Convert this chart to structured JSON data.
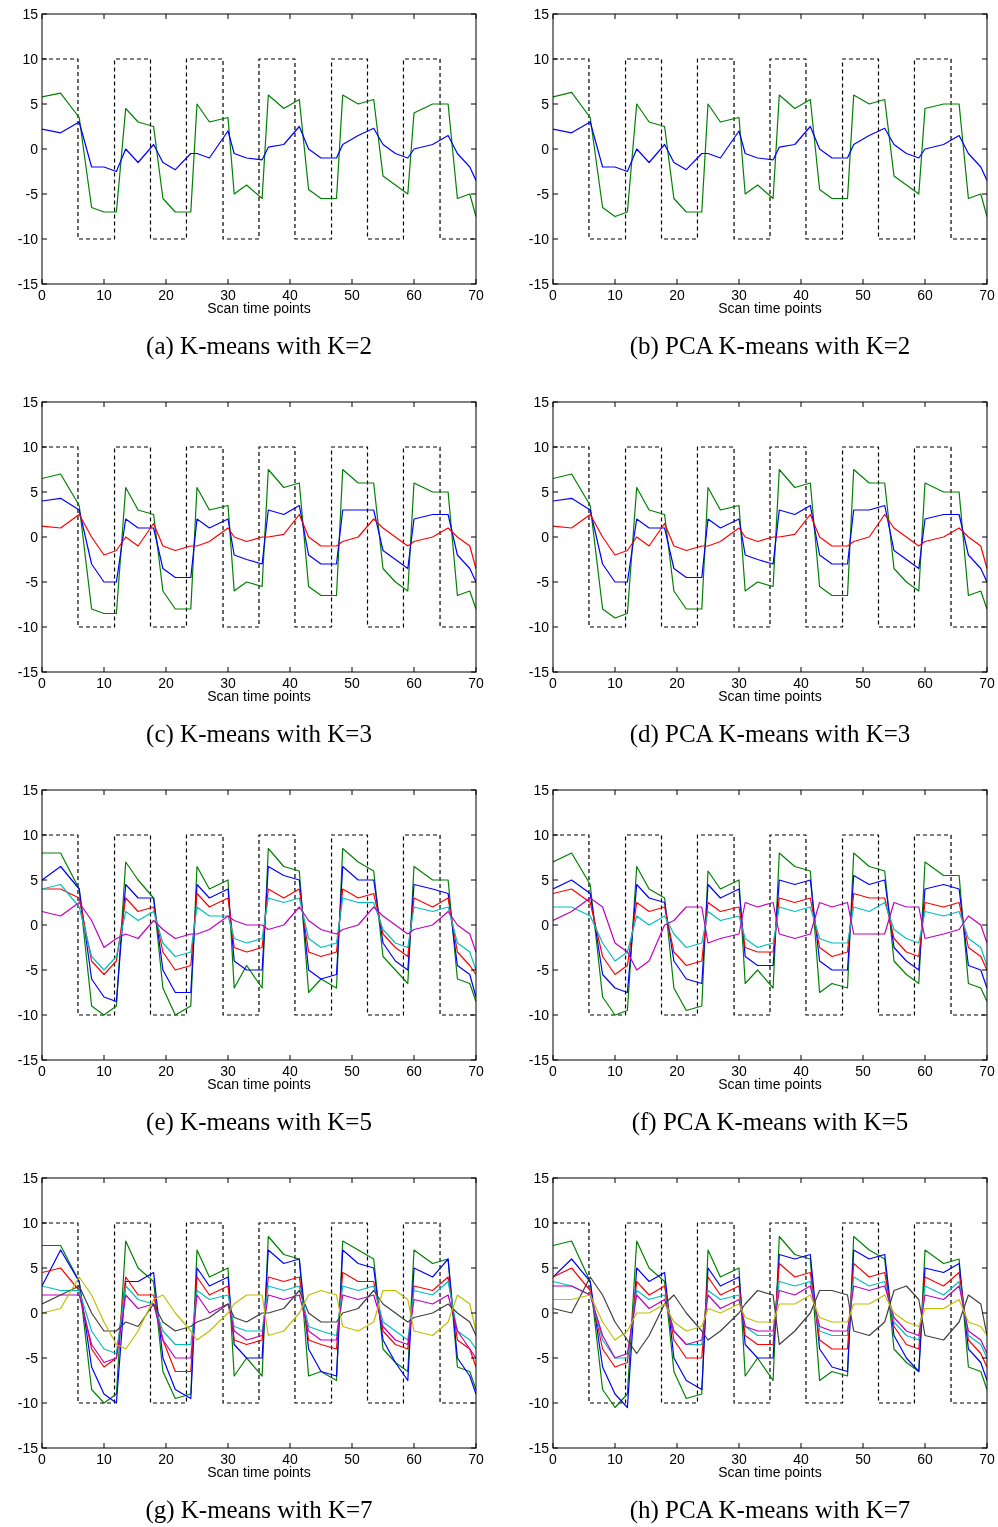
{
  "chart_data": [
    {
      "type": "line",
      "title": "(a) K-means with K=2",
      "xlabel": "Scan time points",
      "xlim": [
        0,
        70
      ],
      "xticks": [
        0,
        10,
        20,
        30,
        40,
        50,
        60,
        70
      ],
      "ylim": [
        -15,
        15
      ],
      "yticks": [
        -15,
        -10,
        -5,
        0,
        5,
        10,
        15
      ],
      "x": [
        0,
        3,
        6,
        8,
        10,
        12,
        13.5,
        15.5,
        18,
        19.5,
        21.5,
        24,
        25,
        27,
        30,
        31,
        33,
        35.5,
        36.5,
        39,
        41.5,
        43,
        45,
        47.5,
        48.5,
        51,
        53.5,
        55,
        57,
        59,
        60,
        63,
        65.5,
        67,
        69,
        70
      ],
      "series": [
        {
          "type": "line",
          "line_style": "dashed",
          "color": "#000000",
          "x": [
            0,
            5.8,
            5.8,
            11.7,
            11.7,
            17.5,
            17.5,
            23.3,
            23.3,
            29.2,
            29.2,
            35,
            35,
            40.8,
            40.8,
            46.7,
            46.7,
            52.5,
            52.5,
            58.3,
            58.3,
            64.2,
            64.2,
            70
          ],
          "values": [
            10,
            10,
            -10,
            -10,
            10,
            10,
            -10,
            -10,
            10,
            10,
            -10,
            -10,
            10,
            10,
            -10,
            -10,
            10,
            10,
            -10,
            -10,
            10,
            10,
            -10,
            -10
          ]
        },
        {
          "color": "#008000",
          "values": [
            5.8,
            6.2,
            3.5,
            -6.5,
            -7,
            -7,
            4.5,
            3,
            2.5,
            -5.5,
            -7,
            -7,
            5,
            3,
            3.5,
            -5,
            -4,
            -5.5,
            6,
            4.5,
            5.5,
            -4.5,
            -5.5,
            -5.5,
            6,
            5,
            5.5,
            -3,
            -4,
            -5,
            4,
            5,
            5,
            -5.5,
            -5,
            -7.5
          ]
        },
        {
          "color": "#0000ff",
          "values": [
            2.2,
            1.8,
            3,
            -2,
            -2,
            -2.5,
            0,
            -1.5,
            0.5,
            -1.5,
            -2.3,
            -0.5,
            -0.5,
            -1,
            2,
            -0.5,
            -1,
            -1.2,
            0.2,
            0.5,
            2.5,
            0,
            -1,
            -1,
            0.5,
            1.5,
            2.3,
            0.5,
            -0.5,
            -1,
            0,
            0.5,
            1.5,
            -0.5,
            -2,
            -3.5
          ]
        }
      ]
    },
    {
      "type": "line",
      "title": "(b) PCA K-means with K=2",
      "xlabel": "Scan time points",
      "xlim": [
        0,
        70
      ],
      "xticks": [
        0,
        10,
        20,
        30,
        40,
        50,
        60,
        70
      ],
      "ylim": [
        -15,
        15
      ],
      "yticks": [
        -15,
        -10,
        -5,
        0,
        5,
        10,
        15
      ],
      "x": [
        0,
        3,
        6,
        8,
        10,
        12,
        13.5,
        15.5,
        18,
        19.5,
        21.5,
        24,
        25,
        27,
        30,
        31,
        33,
        35.5,
        36.5,
        39,
        41.5,
        43,
        45,
        47.5,
        48.5,
        51,
        53.5,
        55,
        57,
        59,
        60,
        63,
        65.5,
        67,
        69,
        70
      ],
      "series": [
        {
          "type": "line",
          "line_style": "dashed",
          "color": "#000000",
          "x": [
            0,
            5.8,
            5.8,
            11.7,
            11.7,
            17.5,
            17.5,
            23.3,
            23.3,
            29.2,
            29.2,
            35,
            35,
            40.8,
            40.8,
            46.7,
            46.7,
            52.5,
            52.5,
            58.3,
            58.3,
            64.2,
            64.2,
            70
          ],
          "values": [
            10,
            10,
            -10,
            -10,
            10,
            10,
            -10,
            -10,
            10,
            10,
            -10,
            -10,
            10,
            10,
            -10,
            -10,
            10,
            10,
            -10,
            -10,
            10,
            10,
            -10,
            -10
          ]
        },
        {
          "color": "#008000",
          "values": [
            5.8,
            6.3,
            3.5,
            -6.5,
            -7.5,
            -7,
            5,
            3,
            2.5,
            -5.5,
            -7,
            -7,
            5,
            3,
            3.5,
            -5,
            -4,
            -5.5,
            6,
            4.5,
            5.5,
            -4.5,
            -5.5,
            -5.5,
            6,
            5,
            5.5,
            -3,
            -4,
            -5,
            4.5,
            5,
            5,
            -5.5,
            -5,
            -7.5
          ]
        },
        {
          "color": "#0000ff",
          "values": [
            2.2,
            1.8,
            3,
            -2,
            -2,
            -2.5,
            0,
            -1.5,
            0.5,
            -1.5,
            -2.3,
            -0.5,
            -0.5,
            -1,
            2,
            -0.5,
            -1,
            -1.2,
            0.2,
            0.5,
            2.5,
            0,
            -1,
            -1,
            0.5,
            1.5,
            2.3,
            0.5,
            -0.5,
            -1,
            0,
            0.5,
            1.5,
            -0.5,
            -2,
            -3.5
          ]
        }
      ]
    },
    {
      "type": "line",
      "title": "(c) K-means with K=3",
      "xlabel": "Scan time points",
      "xlim": [
        0,
        70
      ],
      "xticks": [
        0,
        10,
        20,
        30,
        40,
        50,
        60,
        70
      ],
      "ylim": [
        -15,
        15
      ],
      "yticks": [
        -15,
        -10,
        -5,
        0,
        5,
        10,
        15
      ],
      "x": [
        0,
        3,
        6,
        8,
        10,
        12,
        13.5,
        15.5,
        18,
        19.5,
        21.5,
        24,
        25,
        27,
        30,
        31,
        33,
        35.5,
        36.5,
        39,
        41.5,
        43,
        45,
        47.5,
        48.5,
        51,
        53.5,
        55,
        57,
        59,
        60,
        63,
        65.5,
        67,
        69,
        70
      ],
      "series": [
        {
          "type": "line",
          "line_style": "dashed",
          "color": "#000000",
          "x": [
            0,
            5.8,
            5.8,
            11.7,
            11.7,
            17.5,
            17.5,
            23.3,
            23.3,
            29.2,
            29.2,
            35,
            35,
            40.8,
            40.8,
            46.7,
            46.7,
            52.5,
            52.5,
            58.3,
            58.3,
            64.2,
            64.2,
            70
          ],
          "values": [
            10,
            10,
            -10,
            -10,
            10,
            10,
            -10,
            -10,
            10,
            10,
            -10,
            -10,
            10,
            10,
            -10,
            -10,
            10,
            10,
            -10,
            -10,
            10,
            10,
            -10,
            -10
          ]
        },
        {
          "color": "#008000",
          "values": [
            6.5,
            7,
            3.5,
            -8,
            -8.5,
            -8.5,
            5.5,
            3,
            2.5,
            -6,
            -8,
            -8,
            5.5,
            3,
            3.5,
            -6,
            -5,
            -5.5,
            7.5,
            5.5,
            6,
            -5.5,
            -6.5,
            -6.5,
            7.5,
            6,
            6,
            -3.5,
            -5,
            -6,
            6,
            5,
            5,
            -6.5,
            -6,
            -8
          ]
        },
        {
          "color": "#0000ff",
          "values": [
            4,
            4.3,
            3,
            -3,
            -5,
            -5,
            2,
            1,
            1,
            -3.5,
            -4.5,
            -4.5,
            2,
            1,
            2,
            -2,
            -2.5,
            -3,
            3,
            2.5,
            3.5,
            -2,
            -3,
            -3,
            3,
            3,
            3,
            -1.5,
            -2.5,
            -3.5,
            2,
            2.5,
            2.5,
            -2,
            -3.5,
            -5
          ]
        },
        {
          "color": "#ff0000",
          "values": [
            1.2,
            1,
            2.5,
            0,
            -2,
            -1.5,
            0,
            -1,
            1.5,
            -1,
            -1.5,
            -1,
            -1,
            -0.5,
            1,
            0,
            -0.5,
            0,
            0,
            0.3,
            2.5,
            0,
            -1,
            -1,
            -0.5,
            0,
            2,
            1,
            0,
            -1,
            -0.5,
            0,
            1,
            0,
            -1,
            -3.5
          ]
        }
      ]
    },
    {
      "type": "line",
      "title": "(d) PCA K-means with K=3",
      "xlabel": "Scan time points",
      "xlim": [
        0,
        70
      ],
      "xticks": [
        0,
        10,
        20,
        30,
        40,
        50,
        60,
        70
      ],
      "ylim": [
        -15,
        15
      ],
      "yticks": [
        -15,
        -10,
        -5,
        0,
        5,
        10,
        15
      ],
      "x": [
        0,
        3,
        6,
        8,
        10,
        12,
        13.5,
        15.5,
        18,
        19.5,
        21.5,
        24,
        25,
        27,
        30,
        31,
        33,
        35.5,
        36.5,
        39,
        41.5,
        43,
        45,
        47.5,
        48.5,
        51,
        53.5,
        55,
        57,
        59,
        60,
        63,
        65.5,
        67,
        69,
        70
      ],
      "series": [
        {
          "type": "line",
          "line_style": "dashed",
          "color": "#000000",
          "x": [
            0,
            5.8,
            5.8,
            11.7,
            11.7,
            17.5,
            17.5,
            23.3,
            23.3,
            29.2,
            29.2,
            35,
            35,
            40.8,
            40.8,
            46.7,
            46.7,
            52.5,
            52.5,
            58.3,
            58.3,
            64.2,
            64.2,
            70
          ],
          "values": [
            10,
            10,
            -10,
            -10,
            10,
            10,
            -10,
            -10,
            10,
            10,
            -10,
            -10,
            10,
            10,
            -10,
            -10,
            10,
            10,
            -10,
            -10,
            10,
            10,
            -10,
            -10
          ]
        },
        {
          "color": "#008000",
          "values": [
            6.5,
            7,
            3.5,
            -8,
            -9,
            -8.5,
            5.5,
            3,
            2.5,
            -6,
            -8,
            -8,
            5.5,
            3,
            3.5,
            -6,
            -5,
            -5.5,
            7.5,
            5.5,
            6,
            -5.5,
            -6.5,
            -6.5,
            7.5,
            6,
            6,
            -3.5,
            -5,
            -6,
            6,
            5,
            5,
            -6.5,
            -6,
            -8
          ]
        },
        {
          "color": "#0000ff",
          "values": [
            4,
            4.3,
            3,
            -3,
            -5,
            -5,
            2,
            1,
            1,
            -3.5,
            -4.5,
            -4.5,
            2,
            1,
            2,
            -2,
            -2.5,
            -3,
            3,
            2.5,
            3.5,
            -2,
            -3,
            -3,
            3,
            3,
            3.5,
            -1.5,
            -2.5,
            -3.5,
            2,
            2.5,
            2.5,
            -2,
            -3.5,
            -5
          ]
        },
        {
          "color": "#ff0000",
          "values": [
            1.2,
            1,
            2.5,
            0,
            -2,
            -1.5,
            0,
            -1,
            1.5,
            -1,
            -1.5,
            -1,
            -1,
            -0.5,
            1,
            0,
            -0.5,
            0,
            0,
            0.3,
            2.5,
            0,
            -1,
            -1,
            -0.5,
            0,
            2.5,
            1,
            0,
            -1,
            -0.5,
            0,
            1,
            0,
            -1,
            -3.5
          ]
        }
      ]
    },
    {
      "type": "line",
      "title": "(e) K-means with K=5",
      "xlabel": "Scan time points",
      "xlim": [
        0,
        70
      ],
      "xticks": [
        0,
        10,
        20,
        30,
        40,
        50,
        60,
        70
      ],
      "ylim": [
        -15,
        15
      ],
      "yticks": [
        -15,
        -10,
        -5,
        0,
        5,
        10,
        15
      ],
      "x": [
        0,
        3,
        6,
        8,
        10,
        12,
        13.5,
        15.5,
        18,
        19.5,
        21.5,
        24,
        25,
        27,
        30,
        31,
        33,
        35.5,
        36.5,
        39,
        41.5,
        43,
        45,
        47.5,
        48.5,
        51,
        53.5,
        55,
        57,
        59,
        60,
        63,
        65.5,
        67,
        69,
        70
      ],
      "series": [
        {
          "type": "line",
          "line_style": "dashed",
          "color": "#000000",
          "x": [
            0,
            5.8,
            5.8,
            11.7,
            11.7,
            17.5,
            17.5,
            23.3,
            23.3,
            29.2,
            29.2,
            35,
            35,
            40.8,
            40.8,
            46.7,
            46.7,
            52.5,
            52.5,
            58.3,
            58.3,
            64.2,
            64.2,
            70
          ],
          "values": [
            10,
            10,
            -10,
            -10,
            10,
            10,
            -10,
            -10,
            10,
            10,
            -10,
            -10,
            10,
            10,
            -10,
            -10,
            10,
            10,
            -10,
            -10,
            10,
            10,
            -10,
            -10
          ]
        },
        {
          "color": "#008000",
          "values": [
            8,
            8,
            4,
            -9,
            -10,
            -9,
            7,
            5,
            3,
            -7,
            -10,
            -9,
            6.5,
            4,
            5,
            -7,
            -4.5,
            -7,
            8.5,
            6.5,
            6,
            -7.5,
            -6,
            -7,
            8.5,
            7,
            6,
            -3.5,
            -5,
            -6.5,
            6.5,
            5,
            5,
            -6,
            -6.5,
            -8.5
          ]
        },
        {
          "color": "#0000ff",
          "values": [
            5,
            6.5,
            4,
            -6,
            -8,
            -8.5,
            4.5,
            3,
            3,
            -5,
            -7.5,
            -7.5,
            4.5,
            3,
            4,
            -4,
            -5,
            -5,
            6.5,
            5.5,
            5,
            -5,
            -6,
            -5.5,
            6.5,
            5,
            5,
            -2,
            -4,
            -5,
            4.5,
            4,
            3.5,
            -4.5,
            -5.5,
            -8
          ]
        },
        {
          "color": "#ff0000",
          "values": [
            4,
            4,
            3,
            -4,
            -5.5,
            -4,
            3,
            1.5,
            2,
            -3,
            -5,
            -4.5,
            3.5,
            2,
            3,
            -2.5,
            -3,
            -2.5,
            4,
            3,
            4,
            -3,
            -3.5,
            -3,
            4,
            3,
            3.5,
            -1,
            -2.5,
            -3.5,
            3,
            2,
            3,
            -3,
            -4.5,
            -5.5
          ]
        },
        {
          "color": "#00bfbf",
          "values": [
            4,
            4.5,
            2,
            -3.5,
            -5,
            -3.5,
            1.5,
            0.5,
            1.5,
            -2,
            -3.5,
            -3,
            2,
            1,
            1,
            -1.5,
            -2,
            -1.5,
            3,
            2.5,
            3,
            -1.5,
            -2.5,
            -2,
            3,
            2.5,
            2.5,
            -0.5,
            -2,
            -2.5,
            2,
            1.5,
            2,
            -2,
            -3,
            -5
          ]
        },
        {
          "color": "#bf00bf",
          "values": [
            1.5,
            1,
            2.5,
            0.5,
            -2.5,
            -1.5,
            -1,
            -1.5,
            0.5,
            -0.5,
            -1.5,
            -1,
            -1,
            -0.5,
            1,
            0.5,
            0,
            0,
            -0.5,
            0,
            2,
            0.5,
            -0.5,
            -1,
            -0.5,
            0,
            2,
            1,
            0,
            -1,
            -0.5,
            0,
            1.5,
            0,
            -1,
            -3
          ]
        }
      ]
    },
    {
      "type": "line",
      "title": "(f) PCA K-means with K=5",
      "xlabel": "Scan time points",
      "xlim": [
        0,
        70
      ],
      "xticks": [
        0,
        10,
        20,
        30,
        40,
        50,
        60,
        70
      ],
      "ylim": [
        -15,
        15
      ],
      "yticks": [
        -15,
        -10,
        -5,
        0,
        5,
        10,
        15
      ],
      "x": [
        0,
        3,
        6,
        8,
        10,
        12,
        13.5,
        15.5,
        18,
        19.5,
        21.5,
        24,
        25,
        27,
        30,
        31,
        33,
        35.5,
        36.5,
        39,
        41.5,
        43,
        45,
        47.5,
        48.5,
        51,
        53.5,
        55,
        57,
        59,
        60,
        63,
        65.5,
        67,
        69,
        70
      ],
      "series": [
        {
          "type": "line",
          "line_style": "dashed",
          "color": "#000000",
          "x": [
            0,
            5.8,
            5.8,
            11.7,
            11.7,
            17.5,
            17.5,
            23.3,
            23.3,
            29.2,
            29.2,
            35,
            35,
            40.8,
            40.8,
            46.7,
            46.7,
            52.5,
            52.5,
            58.3,
            58.3,
            64.2,
            64.2,
            70
          ],
          "values": [
            10,
            10,
            -10,
            -10,
            10,
            10,
            -10,
            -10,
            10,
            10,
            -10,
            -10,
            10,
            10,
            -10,
            -10,
            10,
            10,
            -10,
            -10,
            10,
            10,
            -10,
            -10
          ]
        },
        {
          "color": "#008000",
          "values": [
            7,
            8,
            4.5,
            -8,
            -10,
            -9.5,
            6.5,
            4,
            3,
            -7,
            -9.5,
            -9,
            6,
            4,
            5,
            -6.5,
            -5,
            -7,
            8,
            6.5,
            6,
            -7.5,
            -6.5,
            -7,
            8,
            6.5,
            6,
            -4,
            -5.5,
            -6.5,
            7,
            5.5,
            5.5,
            -6.5,
            -7,
            -8.5
          ]
        },
        {
          "color": "#0000ff",
          "values": [
            4,
            5,
            3.5,
            -5.5,
            -7,
            -7.5,
            4.5,
            3,
            2.5,
            -4,
            -6,
            -6.5,
            4.5,
            3,
            4,
            -3.5,
            -4.5,
            -4.5,
            5,
            4.5,
            5,
            -4,
            -5,
            -5,
            5.5,
            4.5,
            5,
            -2.5,
            -4,
            -5,
            4,
            4.5,
            4,
            -4.5,
            -5,
            -7
          ]
        },
        {
          "color": "#ff0000",
          "values": [
            3.5,
            4,
            2.5,
            -3.5,
            -5.5,
            -4.5,
            2.5,
            1.5,
            2,
            -3,
            -4.5,
            -4,
            2.5,
            1.5,
            2,
            -2.5,
            -3,
            -3,
            3,
            2.5,
            3,
            -2.5,
            -3.5,
            -3,
            3.5,
            3,
            3,
            -1.5,
            -3,
            -3.5,
            2.5,
            2,
            2.5,
            -2.5,
            -3.5,
            -5
          ]
        },
        {
          "color": "#00bfbf",
          "values": [
            2,
            2,
            1,
            -2,
            -4,
            -3,
            1,
            0,
            1,
            -1,
            -2.5,
            -2,
            1.5,
            0.5,
            1,
            -1.5,
            -2.5,
            -2,
            2,
            1.5,
            2,
            -1.5,
            -2,
            -2,
            2,
            1.5,
            2.5,
            -0.5,
            -1.5,
            -2,
            1.5,
            1,
            1.5,
            -1.5,
            -2.5,
            -4.5
          ]
        },
        {
          "color": "#bf00bf",
          "values": [
            0.5,
            1.5,
            3,
            2,
            -2,
            -3,
            -5,
            -4,
            0,
            0.5,
            2,
            2,
            -2,
            -1.5,
            -1,
            2.5,
            2,
            2.5,
            -1,
            -1.5,
            -1,
            2.5,
            2,
            2.5,
            -1,
            -1,
            -1,
            2.5,
            2,
            2,
            -1.5,
            -1,
            -0.5,
            1,
            0,
            -2
          ]
        }
      ]
    },
    {
      "type": "line",
      "title": "(g) K-means with K=7",
      "xlabel": "Scan time points",
      "xlim": [
        0,
        70
      ],
      "xticks": [
        0,
        10,
        20,
        30,
        40,
        50,
        60,
        70
      ],
      "ylim": [
        -15,
        15
      ],
      "yticks": [
        -15,
        -10,
        -5,
        0,
        5,
        10,
        15
      ],
      "x": [
        0,
        3,
        6,
        8,
        10,
        12,
        13.5,
        15.5,
        18,
        19.5,
        21.5,
        24,
        25,
        27,
        30,
        31,
        33,
        35.5,
        36.5,
        39,
        41.5,
        43,
        45,
        47.5,
        48.5,
        51,
        53.5,
        55,
        57,
        59,
        60,
        63,
        65.5,
        67,
        69,
        70
      ],
      "series": [
        {
          "type": "line",
          "line_style": "dashed",
          "color": "#000000",
          "x": [
            0,
            5.8,
            5.8,
            11.7,
            11.7,
            17.5,
            17.5,
            23.3,
            23.3,
            29.2,
            29.2,
            35,
            35,
            40.8,
            40.8,
            46.7,
            46.7,
            52.5,
            52.5,
            58.3,
            58.3,
            64.2,
            64.2,
            70
          ],
          "values": [
            10,
            10,
            -10,
            -10,
            10,
            10,
            -10,
            -10,
            10,
            10,
            -10,
            -10,
            10,
            10,
            -10,
            -10,
            10,
            10,
            -10,
            -10,
            10,
            10,
            -10,
            -10
          ]
        },
        {
          "color": "#008000",
          "values": [
            7.5,
            7.5,
            3.5,
            -8.5,
            -10,
            -9,
            8,
            5,
            3.5,
            -6.5,
            -9.5,
            -9,
            7,
            4,
            5,
            -7,
            -5,
            -7,
            8.5,
            6.5,
            6,
            -7,
            -6.5,
            -7.5,
            8,
            7,
            6,
            -4,
            -5.5,
            -6.5,
            7,
            5.5,
            6,
            -6,
            -6.5,
            -8.5
          ]
        },
        {
          "color": "#0000ff",
          "values": [
            3,
            7,
            3.5,
            -6,
            -9,
            -10,
            3.5,
            3.5,
            4.5,
            -5,
            -8.5,
            -9.5,
            5,
            3,
            4,
            -3.5,
            -5,
            -5,
            7,
            5.5,
            6,
            -4,
            -6.5,
            -7,
            7,
            5.5,
            5,
            -3,
            -5.5,
            -7.5,
            5,
            4,
            6,
            -5,
            -7,
            -9
          ]
        },
        {
          "color": "#ff0000",
          "values": [
            4.5,
            5,
            2.5,
            -4,
            -6,
            -5,
            4,
            2,
            2,
            -3,
            -6.5,
            -6.5,
            4,
            2,
            3,
            -3,
            -3.5,
            -3,
            4,
            3.5,
            4,
            -3,
            -3.5,
            -4,
            4.5,
            3.5,
            3.5,
            -2,
            -3.5,
            -4,
            3,
            2.5,
            4,
            -3,
            -4,
            -6
          ]
        },
        {
          "color": "#00bfbf",
          "values": [
            3,
            2.5,
            2.5,
            -2,
            -4,
            -4.5,
            3,
            1.5,
            1,
            -2,
            -3.5,
            -3.5,
            2.5,
            1.5,
            2,
            -1.5,
            -2,
            -2,
            3,
            2.5,
            3,
            -1.5,
            -2,
            -2.5,
            3,
            2.5,
            3,
            -1,
            -2,
            -3,
            2.5,
            2,
            3.5,
            -2,
            -3,
            -4
          ]
        },
        {
          "color": "#bf00bf",
          "values": [
            2,
            2,
            2,
            -3.5,
            -5.5,
            -5,
            2,
            0.5,
            1,
            -3,
            -5,
            -5,
            2,
            0,
            1,
            -2,
            -3,
            -2.5,
            2,
            1.5,
            2,
            -2,
            -3,
            -3,
            2,
            1.5,
            2,
            -1.5,
            -3,
            -3.5,
            1.5,
            1,
            2,
            -2,
            -4,
            -5
          ]
        },
        {
          "color": "#404040",
          "values": [
            1,
            2,
            3,
            0,
            -2,
            -2,
            -1,
            -1.5,
            1,
            -1,
            -2,
            -1.5,
            -1,
            -0.5,
            1,
            -0.5,
            -1,
            0,
            0,
            0.5,
            2.5,
            0,
            -1,
            -1,
            0,
            0.5,
            2.5,
            1,
            0,
            -1,
            -0.5,
            0,
            1,
            0,
            -1,
            -2.5
          ]
        },
        {
          "color": "#bfbf00",
          "values": [
            0,
            0.5,
            4,
            2,
            -1,
            -3.5,
            -4,
            -2,
            1.5,
            2,
            0,
            -2,
            -3,
            -2,
            0,
            1,
            2,
            2,
            -2.5,
            -2,
            0,
            2,
            2.5,
            2,
            -1.5,
            -2,
            -1,
            2.5,
            2.5,
            1.5,
            -2,
            -2.5,
            -1,
            2,
            1,
            -2
          ]
        }
      ]
    },
    {
      "type": "line",
      "title": "(h) PCA K-means with K=7",
      "xlabel": "Scan time points",
      "xlim": [
        0,
        70
      ],
      "xticks": [
        0,
        10,
        20,
        30,
        40,
        50,
        60,
        70
      ],
      "ylim": [
        -15,
        15
      ],
      "yticks": [
        -15,
        -10,
        -5,
        0,
        5,
        10,
        15
      ],
      "x": [
        0,
        3,
        6,
        8,
        10,
        12,
        13.5,
        15.5,
        18,
        19.5,
        21.5,
        24,
        25,
        27,
        30,
        31,
        33,
        35.5,
        36.5,
        39,
        41.5,
        43,
        45,
        47.5,
        48.5,
        51,
        53.5,
        55,
        57,
        59,
        60,
        63,
        65.5,
        67,
        69,
        70
      ],
      "series": [
        {
          "type": "line",
          "line_style": "dashed",
          "color": "#000000",
          "x": [
            0,
            5.8,
            5.8,
            11.7,
            11.7,
            17.5,
            17.5,
            23.3,
            23.3,
            29.2,
            29.2,
            35,
            35,
            40.8,
            40.8,
            46.7,
            46.7,
            52.5,
            52.5,
            58.3,
            58.3,
            64.2,
            64.2,
            70
          ],
          "values": [
            10,
            10,
            -10,
            -10,
            10,
            10,
            -10,
            -10,
            10,
            10,
            -10,
            -10,
            10,
            10,
            -10,
            -10,
            10,
            10,
            -10,
            -10,
            10,
            10,
            -10,
            -10
          ]
        },
        {
          "color": "#008000",
          "values": [
            7.5,
            8,
            3.5,
            -8.5,
            -10.5,
            -9,
            8,
            5,
            3.5,
            -6.5,
            -9.5,
            -9,
            7,
            4,
            5,
            -7,
            -5,
            -7.5,
            8.5,
            6.5,
            6,
            -7.5,
            -6.5,
            -7,
            8.5,
            7,
            6,
            -4,
            -5.5,
            -6.5,
            7,
            5.5,
            6,
            -6,
            -6.5,
            -8.5
          ]
        },
        {
          "color": "#0000ff",
          "values": [
            4,
            6,
            3.5,
            -6,
            -9,
            -10.5,
            5,
            3.5,
            4.5,
            -5,
            -7.5,
            -8.5,
            5,
            3,
            4,
            -3.5,
            -5,
            -5,
            6.5,
            6,
            6.5,
            -4,
            -6,
            -6.5,
            7,
            6,
            6.5,
            -2.5,
            -5,
            -6.5,
            5,
            4.5,
            5.5,
            -4,
            -5.5,
            -7.5
          ]
        },
        {
          "color": "#ff0000",
          "values": [
            4,
            5,
            2.5,
            -4,
            -6,
            -5.5,
            3.5,
            2,
            3,
            -3,
            -5,
            -5,
            4,
            2,
            3,
            -2.5,
            -3.5,
            -3.5,
            5.5,
            4,
            4.5,
            -3,
            -4,
            -4,
            5.5,
            4,
            4.5,
            -1.5,
            -3.5,
            -4,
            4,
            3,
            4.5,
            -3,
            -4.5,
            -6
          ]
        },
        {
          "color": "#00bfbf",
          "values": [
            3.5,
            3,
            2,
            -3,
            -5,
            -5,
            2.5,
            1.5,
            2,
            -2,
            -3.5,
            -3.5,
            2.5,
            1.5,
            2,
            -1.5,
            -2.5,
            -2.5,
            3.5,
            3,
            3.5,
            -2,
            -2.5,
            -2.5,
            4,
            3,
            3.5,
            -1,
            -2.5,
            -3,
            3,
            2,
            3.5,
            -2.5,
            -3.5,
            -5
          ]
        },
        {
          "color": "#bf00bf",
          "values": [
            3,
            3,
            2,
            -2.5,
            -5,
            -4.5,
            2,
            0.5,
            1.5,
            -2,
            -3.5,
            -3,
            2,
            0.5,
            1.5,
            -1.5,
            -2,
            -2,
            2.5,
            2,
            3,
            -1.5,
            -2,
            -2,
            3,
            2.5,
            3,
            -0.5,
            -2,
            -2.5,
            2,
            1.5,
            3,
            -2,
            -3,
            -4.5
          ]
        },
        {
          "color": "#404040",
          "values": [
            0.5,
            0,
            4,
            2,
            -1,
            -3,
            -4.5,
            -2.5,
            1,
            2,
            0,
            -2,
            -3,
            -2,
            0,
            1,
            2.5,
            2,
            -3.5,
            -2,
            0,
            2.5,
            2.5,
            2,
            -2,
            -2.5,
            -1,
            2.5,
            3,
            1.5,
            -2.5,
            -3,
            -1,
            2,
            1,
            -2.5
          ]
        },
        {
          "color": "#bfbf00",
          "values": [
            1.5,
            1.5,
            2,
            -1,
            -3,
            -2,
            0,
            0,
            1,
            -1,
            -2,
            -1.5,
            0.5,
            0,
            1,
            -0.5,
            -1,
            -1,
            1,
            1,
            2,
            -0.5,
            -1,
            -1,
            1,
            1,
            2,
            0,
            -1,
            -1.5,
            0.5,
            0.5,
            1.5,
            -1,
            -1.5,
            -2.5
          ]
        }
      ]
    }
  ]
}
